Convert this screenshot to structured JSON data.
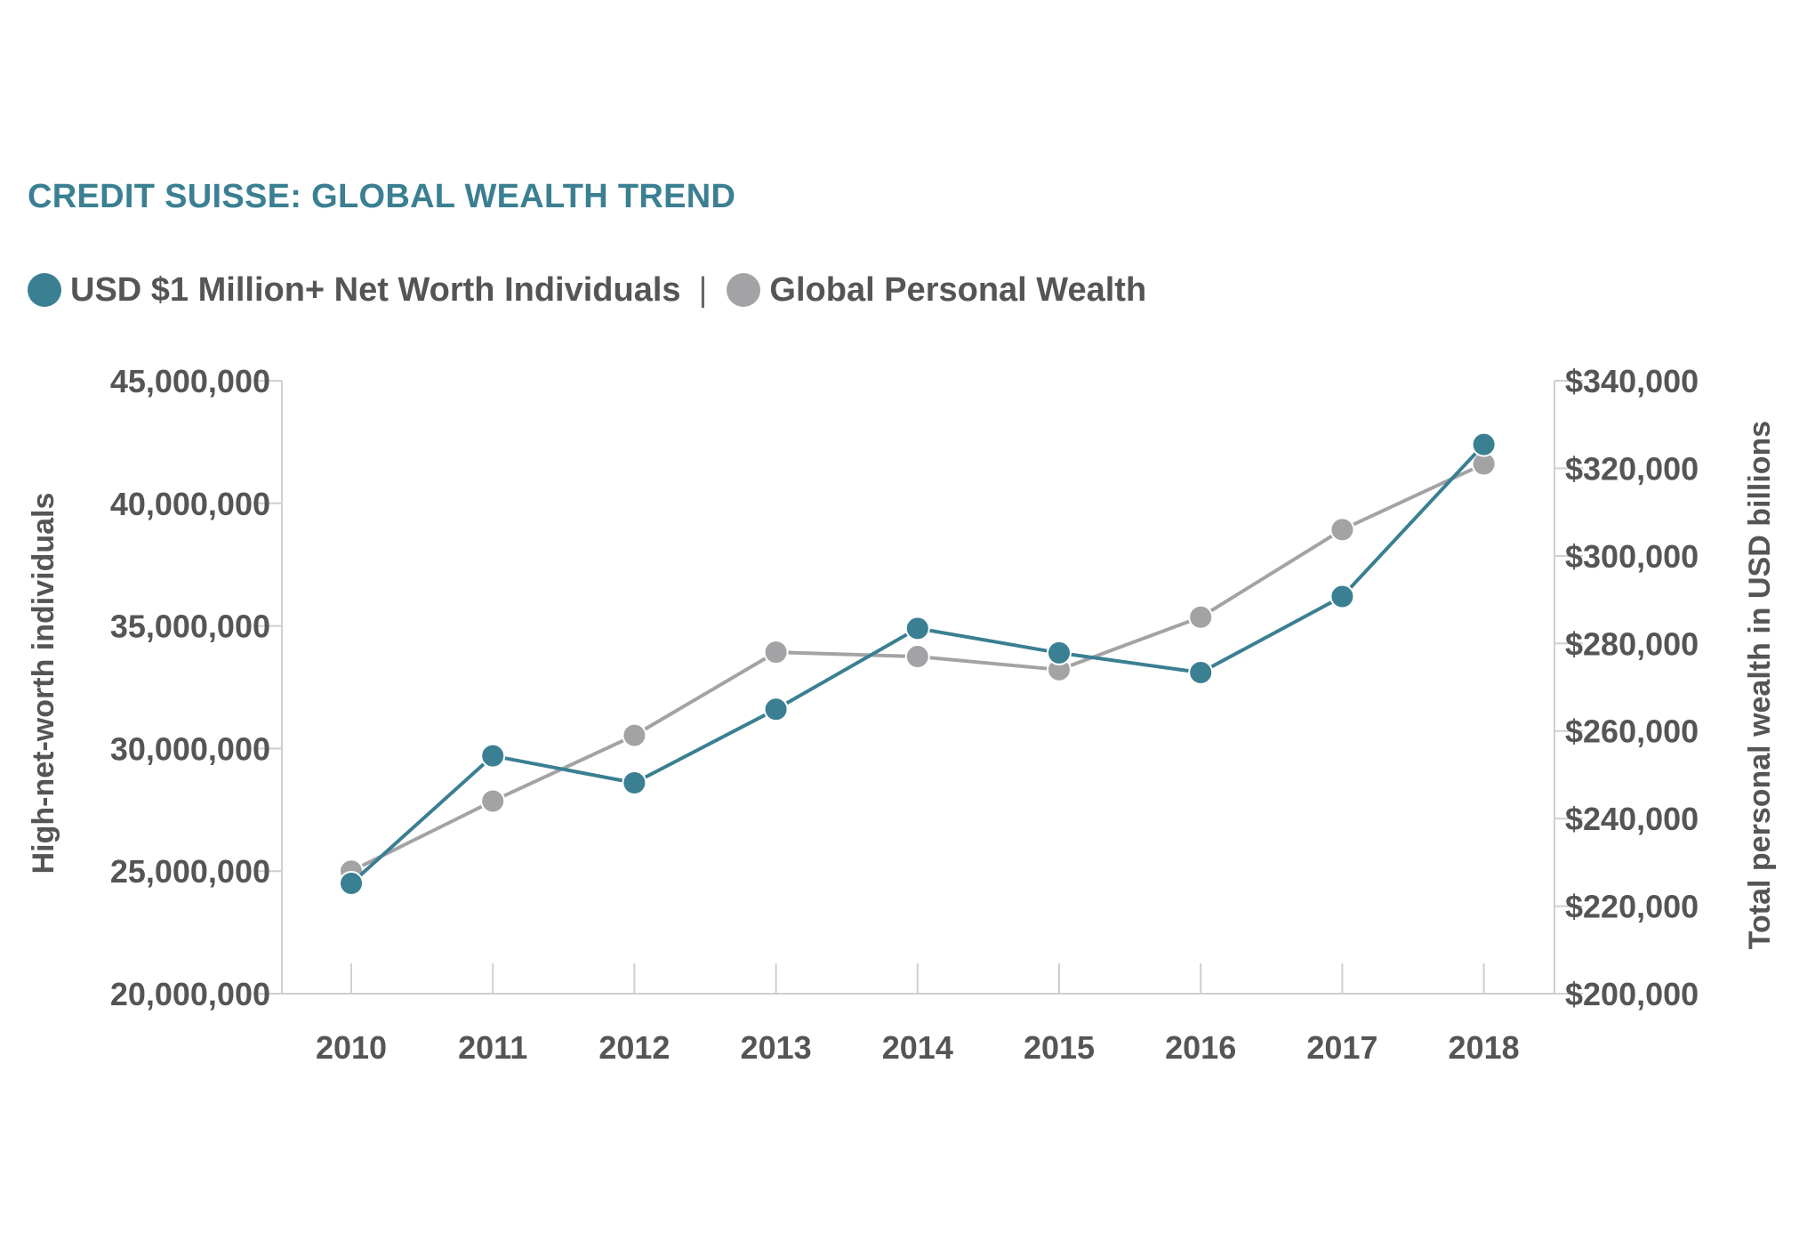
{
  "chart_data": {
    "type": "line",
    "title": "CREDIT SUISSE: GLOBAL WEALTH TREND",
    "x": [
      "2010",
      "2011",
      "2012",
      "2013",
      "2014",
      "2015",
      "2016",
      "2017",
      "2018"
    ],
    "series": [
      {
        "name": "USD $1 Million+ Net Worth Individuals",
        "axis": "left",
        "color": "#3a7f92",
        "values": [
          24500000,
          29700000,
          28600000,
          31600000,
          34900000,
          33900000,
          33100000,
          36200000,
          42400000
        ]
      },
      {
        "name": "Global Personal Wealth",
        "axis": "right",
        "color": "#a3a3a6",
        "values": [
          228000,
          244000,
          259000,
          278000,
          277000,
          274000,
          286000,
          306000,
          321000
        ]
      }
    ],
    "legend_separator": "|",
    "legend_position": "top-left",
    "ylabel": "High-net-worth individuals",
    "ylim": [
      20000000,
      45000000
    ],
    "yticks": [
      "20,000,000",
      "25,000,000",
      "30,000,000",
      "35,000,000",
      "40,000,000",
      "45,000,000"
    ],
    "y2label": "Total personal wealth in USD billions",
    "y2lim": [
      200000,
      340000
    ],
    "y2ticks": [
      "$200,000",
      "$220,000",
      "$240,000",
      "$260,000",
      "$280,000",
      "$300,000",
      "$320,000",
      "$340,000"
    ],
    "grid": false
  }
}
